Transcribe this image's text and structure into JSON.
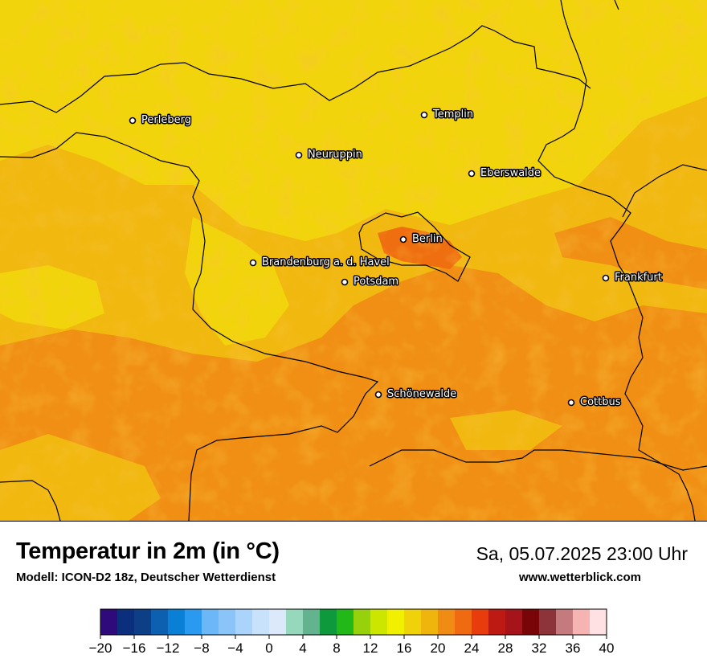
{
  "header": {
    "title": "Temperatur in 2m (in °C)",
    "subtitle": "Modell: ICON-D2 18z, Deutscher Wetterdienst",
    "datetime": "Sa, 05.07.2025 23:00 Uhr",
    "website": "www.wetterblick.com"
  },
  "map": {
    "cities": [
      {
        "name": "Perleberg"
      },
      {
        "name": "Templin"
      },
      {
        "name": "Neuruppin"
      },
      {
        "name": "Eberswalde"
      },
      {
        "name": "Berlin"
      },
      {
        "name": "Brandenburg a. d. Havel"
      },
      {
        "name": "Potsdam"
      },
      {
        "name": "Frankfurt"
      },
      {
        "name": "Schönewalde"
      },
      {
        "name": "Cottbus"
      }
    ]
  },
  "legend": {
    "ticks": [
      "−20",
      "−16",
      "−12",
      "−8",
      "−4",
      "0",
      "4",
      "8",
      "12",
      "16",
      "20",
      "24",
      "28",
      "32",
      "36",
      "40"
    ],
    "colors": [
      "#2e0a7a",
      "#0c2f7d",
      "#0d3f86",
      "#0d5fb0",
      "#0a7fd6",
      "#2a9af0",
      "#6bb7f8",
      "#8ac4f9",
      "#aad4fb",
      "#c8e2fb",
      "#dbe9fa",
      "#95d8bc",
      "#64b38f",
      "#0e9a3c",
      "#22b818",
      "#96d10b",
      "#cce600",
      "#f0f000",
      "#f0d20a",
      "#f0b50c",
      "#f08c14",
      "#ef6a10",
      "#e83c0c",
      "#be1a14",
      "#a5141a",
      "#7a0509",
      "#8c3439",
      "#c57a7d",
      "#f5b3b1",
      "#ffe0e3"
    ]
  }
}
